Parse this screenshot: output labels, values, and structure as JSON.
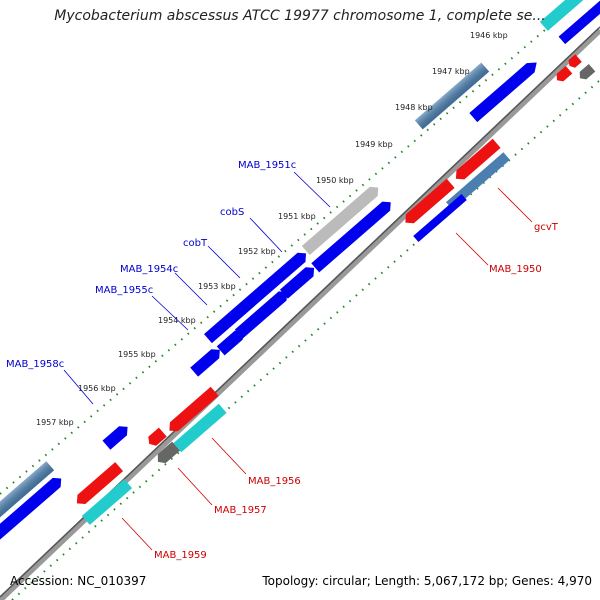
{
  "title": "Mycobacterium abscessus ATCC 19977 chromosome 1, complete se...",
  "footer": {
    "accession": "Accession: NC_010397",
    "topology": "Topology: circular; Length: 5,067,172 bp; Genes: 4,970"
  },
  "colors": {
    "forward_cds": "#0000ee",
    "forward_cds_alt": "#4a7fb0",
    "reverse_cds": "#ee1111",
    "reverse_alt": "#22cccc",
    "other": "#666666",
    "pseudo": "#bbbbbb",
    "tick": "#228822",
    "forward_label": "#0000cc",
    "reverse_label": "#cc0000"
  },
  "kbp_labels": [
    "1946 kbp",
    "1947 kbp",
    "1948 kbp",
    "1949 kbp",
    "1950 kbp",
    "1951 kbp",
    "1952 kbp",
    "1953 kbp",
    "1954 kbp",
    "1955 kbp",
    "1956 kbp",
    "1957 kbp"
  ],
  "forward_labels": [
    "MAB_1951c",
    "cobS",
    "cobT",
    "MAB_1954c",
    "MAB_1955c",
    "MAB_1958c"
  ],
  "reverse_labels": [
    "gcvT",
    "MAB_1950",
    "MAB_1956",
    "MAB_1957",
    "MAB_1959"
  ]
}
